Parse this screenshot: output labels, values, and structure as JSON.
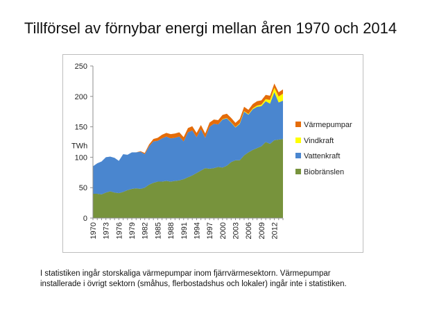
{
  "title": "Tillförsel av förnybar energi mellan åren 1970 och 2014",
  "note": {
    "line1": "I statistiken ingår storskaliga värmepumpar inom fjärrvärmesektorn.  Värmepumpar",
    "line2": "installerade i övrigt sektorn (småhus, flerbostadshus och lokaler) ingår inte i statistiken."
  },
  "chart_data": {
    "type": "area",
    "stacked": true,
    "ylabel": "TWh",
    "ylim": [
      0,
      250
    ],
    "yticks": [
      0,
      50,
      100,
      150,
      200,
      250
    ],
    "xticks": [
      "1970",
      "1973",
      "1976",
      "1979",
      "1982",
      "1985",
      "1988",
      "1991",
      "1994",
      "1997",
      "2000",
      "2003",
      "2006",
      "2009",
      "2012"
    ],
    "x": [
      1970,
      1971,
      1972,
      1973,
      1974,
      1975,
      1976,
      1977,
      1978,
      1979,
      1980,
      1981,
      1982,
      1983,
      1984,
      1985,
      1986,
      1987,
      1988,
      1989,
      1990,
      1991,
      1992,
      1993,
      1994,
      1995,
      1996,
      1997,
      1998,
      1999,
      2000,
      2001,
      2002,
      2003,
      2004,
      2005,
      2006,
      2007,
      2008,
      2009,
      2010,
      2011,
      2012,
      2013,
      2014
    ],
    "series": [
      {
        "name": "Biobränslen",
        "color": "#77933c",
        "values": [
          40,
          40,
          39,
          42,
          44,
          42,
          41,
          43,
          46,
          48,
          49,
          48,
          50,
          55,
          58,
          60,
          60,
          61,
          60,
          61,
          62,
          64,
          67,
          70,
          74,
          78,
          82,
          81,
          82,
          84,
          83,
          86,
          92,
          95,
          95,
          103,
          108,
          112,
          115,
          118,
          125,
          122,
          128,
          129,
          130
        ]
      },
      {
        "name": "Vattenkraft",
        "color": "#4a86cf",
        "values": [
          45,
          50,
          54,
          58,
          57,
          57,
          53,
          62,
          58,
          60,
          59,
          61,
          55,
          63,
          68,
          67,
          71,
          73,
          71,
          71,
          72,
          62,
          74,
          74,
          59,
          68,
          50,
          69,
          73,
          70,
          79,
          78,
          65,
          54,
          60,
          72,
          62,
          67,
          68,
          66,
          67,
          66,
          79,
          61,
          63
        ]
      },
      {
        "name": "Vindkraft",
        "color": "#ffff00",
        "values": [
          0,
          0,
          0,
          0,
          0,
          0,
          0,
          0,
          0,
          0,
          0,
          0,
          0,
          0,
          0,
          0,
          0,
          0,
          0,
          0,
          0,
          0,
          0,
          0,
          0,
          0,
          0,
          0,
          0,
          0,
          0.5,
          0.5,
          0.6,
          0.6,
          0.9,
          0.9,
          1.0,
          1.4,
          2.0,
          2.5,
          3.5,
          6.1,
          7.2,
          9.8,
          11.5
        ]
      },
      {
        "name": "Värmepumpar",
        "color": "#e46c0a",
        "values": [
          0,
          0,
          0,
          0,
          0,
          0,
          0,
          0,
          0,
          0,
          0,
          1,
          2,
          3,
          4,
          5,
          6,
          6,
          7,
          7,
          7,
          7,
          7,
          7,
          7,
          7,
          7,
          7,
          7,
          7,
          7,
          7,
          7,
          7,
          7,
          7,
          7,
          7,
          7,
          7,
          7,
          7,
          7,
          7,
          7
        ]
      }
    ],
    "legend": {
      "position": "right",
      "order": [
        "Värmepumpar",
        "Vindkraft",
        "Vattenkraft",
        "Biobränslen"
      ]
    },
    "grid": false
  }
}
